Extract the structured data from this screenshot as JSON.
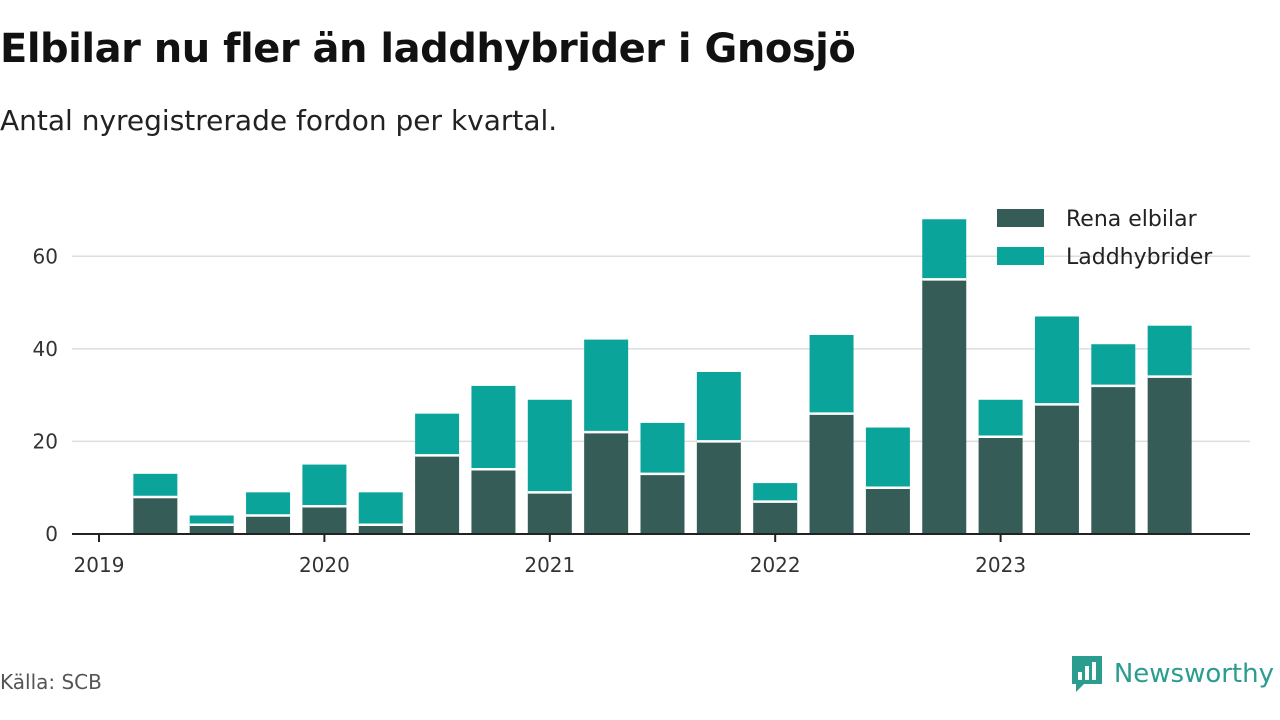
{
  "title": "Elbilar nu fler än laddhybrider i Gnosjö",
  "subtitle": "Antal nyregistrerade fordon per kvartal.",
  "source": "Källa: SCB",
  "brand": "Newsworthy",
  "colors": {
    "electric": "#365c58",
    "hybrid": "#0aa49b",
    "grid": "#dddddd",
    "axis": "#222222",
    "brand": "#2a9d8f"
  },
  "chart_data": {
    "type": "bar",
    "stacked": true,
    "categories": [
      "2019 Q1",
      "2019 Q2",
      "2019 Q3",
      "2019 Q4",
      "2020 Q1",
      "2020 Q2",
      "2020 Q3",
      "2020 Q4",
      "2021 Q1",
      "2021 Q2",
      "2021 Q3",
      "2021 Q4",
      "2022 Q1",
      "2022 Q2",
      "2022 Q3",
      "2022 Q4",
      "2023 Q1",
      "2023 Q2",
      "2023 Q3",
      "2023 Q4",
      "2024 Q1"
    ],
    "series": [
      {
        "name": "Rena elbilar",
        "values": [
          0,
          8,
          2,
          4,
          6,
          2,
          17,
          14,
          9,
          22,
          13,
          20,
          7,
          26,
          10,
          55,
          21,
          28,
          32,
          34,
          null
        ]
      },
      {
        "name": "Laddhybrider",
        "values": [
          0,
          5,
          2,
          5,
          9,
          7,
          9,
          18,
          20,
          20,
          11,
          15,
          4,
          17,
          13,
          13,
          8,
          19,
          9,
          11,
          null
        ]
      }
    ],
    "x_tick_labels": [
      "2019",
      "2020",
      "2021",
      "2022",
      "2023"
    ],
    "y_ticks": [
      0,
      20,
      40,
      60
    ],
    "ylim": [
      0,
      70
    ],
    "legend_position": "top-right",
    "xlabel": "",
    "ylabel": ""
  }
}
